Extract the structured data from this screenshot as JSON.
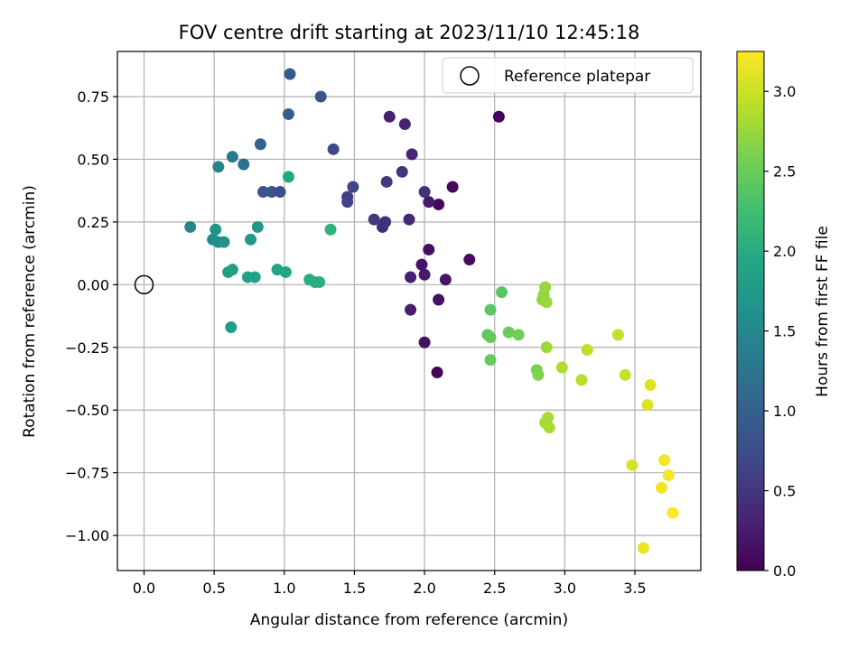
{
  "chart_data": {
    "type": "scatter",
    "title": "FOV centre drift starting at 2023/11/10 12:45:18",
    "xlabel": "Angular distance from reference (arcmin)",
    "ylabel": "Rotation from reference (arcmin)",
    "xlim": [
      -0.19,
      3.97
    ],
    "ylim": [
      -1.14,
      0.93
    ],
    "xticks": [
      "0.0",
      "0.5",
      "1.0",
      "1.5",
      "2.0",
      "2.5",
      "3.0",
      "3.5"
    ],
    "yticks": [
      "−1.00",
      "−0.75",
      "−0.50",
      "−0.25",
      "0.00",
      "0.25",
      "0.50",
      "0.75"
    ],
    "grid": true,
    "legend": {
      "position": "top-right",
      "entries": [
        {
          "label": "Reference platepar",
          "marker": "open-circle"
        }
      ]
    },
    "reference_point": {
      "x": 0.0,
      "y": 0.0
    },
    "colorbar": {
      "label": "Hours from first FF file",
      "colormap": "viridis",
      "range": [
        0.0,
        3.25
      ],
      "ticks": [
        "0.0",
        "0.5",
        "1.0",
        "1.5",
        "2.0",
        "2.5",
        "3.0"
      ],
      "stops": [
        "#440154",
        "#482475",
        "#414487",
        "#355f8d",
        "#2a788e",
        "#21918c",
        "#22a884",
        "#44bf70",
        "#7ad151",
        "#bddf26",
        "#fde725"
      ]
    },
    "points": [
      {
        "x": 2.53,
        "y": 0.67,
        "c": 0.02
      },
      {
        "x": 2.09,
        "y": -0.35,
        "c": 0.04
      },
      {
        "x": 2.1,
        "y": 0.32,
        "c": 0.06
      },
      {
        "x": 2.2,
        "y": 0.39,
        "c": 0.08
      },
      {
        "x": 2.32,
        "y": 0.1,
        "c": 0.1
      },
      {
        "x": 2.03,
        "y": 0.14,
        "c": 0.12
      },
      {
        "x": 2.1,
        "y": -0.06,
        "c": 0.14
      },
      {
        "x": 2.0,
        "y": -0.23,
        "c": 0.16
      },
      {
        "x": 1.98,
        "y": 0.08,
        "c": 0.18
      },
      {
        "x": 2.15,
        "y": 0.02,
        "c": 0.2
      },
      {
        "x": 2.0,
        "y": 0.04,
        "c": 0.22
      },
      {
        "x": 2.03,
        "y": 0.33,
        "c": 0.24
      },
      {
        "x": 1.9,
        "y": -0.1,
        "c": 0.26
      },
      {
        "x": 1.9,
        "y": 0.03,
        "c": 0.28
      },
      {
        "x": 1.75,
        "y": 0.67,
        "c": 0.3
      },
      {
        "x": 1.86,
        "y": 0.64,
        "c": 0.32
      },
      {
        "x": 1.91,
        "y": 0.52,
        "c": 0.34
      },
      {
        "x": 1.89,
        "y": 0.26,
        "c": 0.38
      },
      {
        "x": 1.7,
        "y": 0.23,
        "c": 0.42
      },
      {
        "x": 1.72,
        "y": 0.25,
        "c": 0.44
      },
      {
        "x": 2.0,
        "y": 0.37,
        "c": 0.46
      },
      {
        "x": 1.84,
        "y": 0.45,
        "c": 0.48
      },
      {
        "x": 1.73,
        "y": 0.41,
        "c": 0.52
      },
      {
        "x": 1.64,
        "y": 0.26,
        "c": 0.56
      },
      {
        "x": 1.45,
        "y": 0.35,
        "c": 0.6
      },
      {
        "x": 1.45,
        "y": 0.33,
        "c": 0.64
      },
      {
        "x": 1.49,
        "y": 0.39,
        "c": 0.68
      },
      {
        "x": 1.35,
        "y": 0.54,
        "c": 0.72
      },
      {
        "x": 0.97,
        "y": 0.37,
        "c": 0.8
      },
      {
        "x": 0.91,
        "y": 0.37,
        "c": 0.84
      },
      {
        "x": 0.85,
        "y": 0.37,
        "c": 0.86
      },
      {
        "x": 1.26,
        "y": 0.75,
        "c": 0.88
      },
      {
        "x": 1.04,
        "y": 0.84,
        "c": 0.92
      },
      {
        "x": 1.03,
        "y": 0.68,
        "c": 0.96
      },
      {
        "x": 0.83,
        "y": 0.56,
        "c": 1.0
      },
      {
        "x": 0.71,
        "y": 0.48,
        "c": 1.2
      },
      {
        "x": 0.63,
        "y": 0.51,
        "c": 1.3
      },
      {
        "x": 0.53,
        "y": 0.47,
        "c": 1.45
      },
      {
        "x": 0.33,
        "y": 0.23,
        "c": 1.5
      },
      {
        "x": 0.49,
        "y": 0.18,
        "c": 1.55
      },
      {
        "x": 0.53,
        "y": 0.17,
        "c": 1.6
      },
      {
        "x": 0.57,
        "y": 0.17,
        "c": 1.65
      },
      {
        "x": 0.51,
        "y": 0.22,
        "c": 1.68
      },
      {
        "x": 0.81,
        "y": 0.23,
        "c": 1.72
      },
      {
        "x": 0.76,
        "y": 0.18,
        "c": 1.74
      },
      {
        "x": 0.62,
        "y": -0.17,
        "c": 1.78
      },
      {
        "x": 0.6,
        "y": 0.05,
        "c": 1.8
      },
      {
        "x": 0.63,
        "y": 0.06,
        "c": 1.82
      },
      {
        "x": 0.74,
        "y": 0.03,
        "c": 1.84
      },
      {
        "x": 0.79,
        "y": 0.03,
        "c": 1.86
      },
      {
        "x": 0.95,
        "y": 0.06,
        "c": 1.9
      },
      {
        "x": 1.01,
        "y": 0.05,
        "c": 1.92
      },
      {
        "x": 1.03,
        "y": 0.43,
        "c": 1.95
      },
      {
        "x": 1.18,
        "y": 0.02,
        "c": 2.0
      },
      {
        "x": 1.22,
        "y": 0.01,
        "c": 2.02
      },
      {
        "x": 1.25,
        "y": 0.01,
        "c": 2.04
      },
      {
        "x": 1.33,
        "y": 0.22,
        "c": 2.1
      },
      {
        "x": 2.55,
        "y": -0.03,
        "c": 2.4
      },
      {
        "x": 2.47,
        "y": -0.1,
        "c": 2.42
      },
      {
        "x": 2.45,
        "y": -0.2,
        "c": 2.44
      },
      {
        "x": 2.47,
        "y": -0.21,
        "c": 2.46
      },
      {
        "x": 2.47,
        "y": -0.3,
        "c": 2.48
      },
      {
        "x": 2.6,
        "y": -0.19,
        "c": 2.5
      },
      {
        "x": 2.67,
        "y": -0.2,
        "c": 2.55
      },
      {
        "x": 2.8,
        "y": -0.34,
        "c": 2.6
      },
      {
        "x": 2.81,
        "y": -0.36,
        "c": 2.62
      },
      {
        "x": 2.85,
        "y": -0.04,
        "c": 2.7
      },
      {
        "x": 2.84,
        "y": -0.06,
        "c": 2.72
      },
      {
        "x": 2.86,
        "y": -0.01,
        "c": 2.74
      },
      {
        "x": 2.87,
        "y": -0.07,
        "c": 2.76
      },
      {
        "x": 2.87,
        "y": -0.25,
        "c": 2.78
      },
      {
        "x": 2.86,
        "y": -0.55,
        "c": 2.8
      },
      {
        "x": 2.88,
        "y": -0.53,
        "c": 2.82
      },
      {
        "x": 2.89,
        "y": -0.57,
        "c": 2.84
      },
      {
        "x": 2.98,
        "y": -0.33,
        "c": 2.86
      },
      {
        "x": 3.12,
        "y": -0.38,
        "c": 2.9
      },
      {
        "x": 3.16,
        "y": -0.26,
        "c": 2.92
      },
      {
        "x": 3.38,
        "y": -0.2,
        "c": 2.95
      },
      {
        "x": 3.43,
        "y": -0.36,
        "c": 2.98
      },
      {
        "x": 3.48,
        "y": -0.72,
        "c": 3.05
      },
      {
        "x": 3.59,
        "y": -0.48,
        "c": 3.08
      },
      {
        "x": 3.61,
        "y": -0.4,
        "c": 3.1
      },
      {
        "x": 3.56,
        "y": -1.05,
        "c": 3.15
      },
      {
        "x": 3.69,
        "y": -0.81,
        "c": 3.18
      },
      {
        "x": 3.71,
        "y": -0.7,
        "c": 3.2
      },
      {
        "x": 3.74,
        "y": -0.76,
        "c": 3.22
      },
      {
        "x": 3.77,
        "y": -0.91,
        "c": 3.24
      }
    ]
  }
}
